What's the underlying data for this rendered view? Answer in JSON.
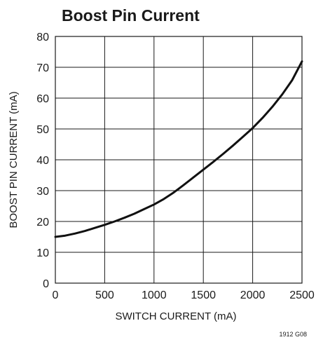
{
  "chart_data": {
    "type": "line",
    "title": "Boost Pin Current",
    "xlabel": "SWITCH CURRENT (mA)",
    "ylabel": "BOOST PIN CURRENT (mA)",
    "xlim": [
      0,
      2500
    ],
    "ylim": [
      0,
      80
    ],
    "x_ticks": [
      0,
      500,
      1000,
      1500,
      2000,
      2500
    ],
    "y_ticks": [
      0,
      10,
      20,
      30,
      40,
      50,
      60,
      70,
      80
    ],
    "grid": true,
    "note": "1912 G08",
    "series": [
      {
        "x": [
          0,
          100,
          200,
          300,
          400,
          500,
          600,
          700,
          800,
          900,
          1000,
          1100,
          1200,
          1300,
          1400,
          1500,
          1600,
          1700,
          1800,
          1900,
          2000,
          2100,
          2200,
          2300,
          2400,
          2500
        ],
        "y": [
          15.0,
          15.4,
          16.1,
          16.9,
          17.9,
          18.9,
          20.0,
          21.2,
          22.5,
          24.0,
          25.5,
          27.3,
          29.4,
          31.8,
          34.3,
          36.8,
          39.3,
          41.9,
          44.6,
          47.4,
          50.3,
          53.6,
          57.2,
          61.2,
          65.8,
          71.9
        ]
      }
    ]
  }
}
